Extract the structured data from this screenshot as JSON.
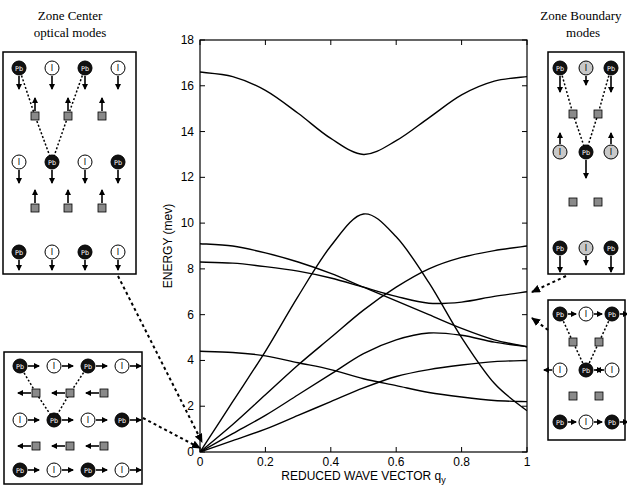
{
  "chart_data": {
    "type": "line",
    "x_label": "REDUCED WAVE VECTOR q",
    "x_label_subscript": "y",
    "y_label": "ENERGY (mev)",
    "x": [
      0,
      0.1,
      0.2,
      0.3,
      0.4,
      0.5,
      0.6,
      0.7,
      0.8,
      0.9,
      1
    ],
    "series": [
      {
        "color": "#000000",
        "values": [
          16.6,
          16.4,
          15.8,
          14.8,
          13.7,
          13.0,
          13.6,
          14.6,
          15.6,
          16.2,
          16.4
        ]
      },
      {
        "color": "#000000",
        "values": [
          0,
          2.2,
          4.4,
          6.8,
          9.0,
          10.4,
          9.4,
          7.4,
          5.0,
          3.0,
          1.8
        ]
      },
      {
        "color": "#000000",
        "values": [
          9.1,
          9.0,
          8.7,
          8.3,
          7.8,
          7.2,
          6.6,
          6.0,
          5.4,
          4.9,
          4.6
        ]
      },
      {
        "color": "#000000",
        "values": [
          8.3,
          8.25,
          8.1,
          7.9,
          7.6,
          7.2,
          6.8,
          6.5,
          6.55,
          6.8,
          7.0
        ]
      },
      {
        "color": "#000000",
        "values": [
          0,
          1.2,
          2.5,
          3.8,
          5.0,
          6.2,
          7.2,
          8.0,
          8.5,
          8.8,
          9.0
        ]
      },
      {
        "color": "#000000",
        "values": [
          0,
          0.8,
          1.6,
          2.5,
          3.4,
          4.3,
          4.9,
          5.2,
          5.1,
          4.8,
          4.6
        ]
      },
      {
        "color": "#000000",
        "values": [
          4.4,
          4.35,
          4.2,
          3.9,
          3.6,
          3.2,
          2.9,
          2.6,
          2.4,
          2.25,
          2.2
        ]
      },
      {
        "color": "#000000",
        "values": [
          0,
          0.5,
          1.0,
          1.6,
          2.2,
          2.8,
          3.3,
          3.6,
          3.8,
          3.95,
          4.0
        ]
      }
    ],
    "xlim": [
      0,
      1
    ],
    "ylim": [
      0,
      18
    ],
    "xticks": [
      0,
      0.2,
      0.4,
      0.6,
      0.8,
      1
    ],
    "yticks": [
      0,
      2,
      4,
      6,
      8,
      10,
      12,
      14,
      16,
      18
    ],
    "grid": false
  },
  "panel_titles": [
    {
      "lines": [
        "Zone Center",
        "optical modes"
      ]
    },
    {
      "lines": [
        "Zone Boundary",
        "modes"
      ]
    }
  ],
  "atom_labels": {
    "pb": "Pb",
    "i": "I"
  }
}
